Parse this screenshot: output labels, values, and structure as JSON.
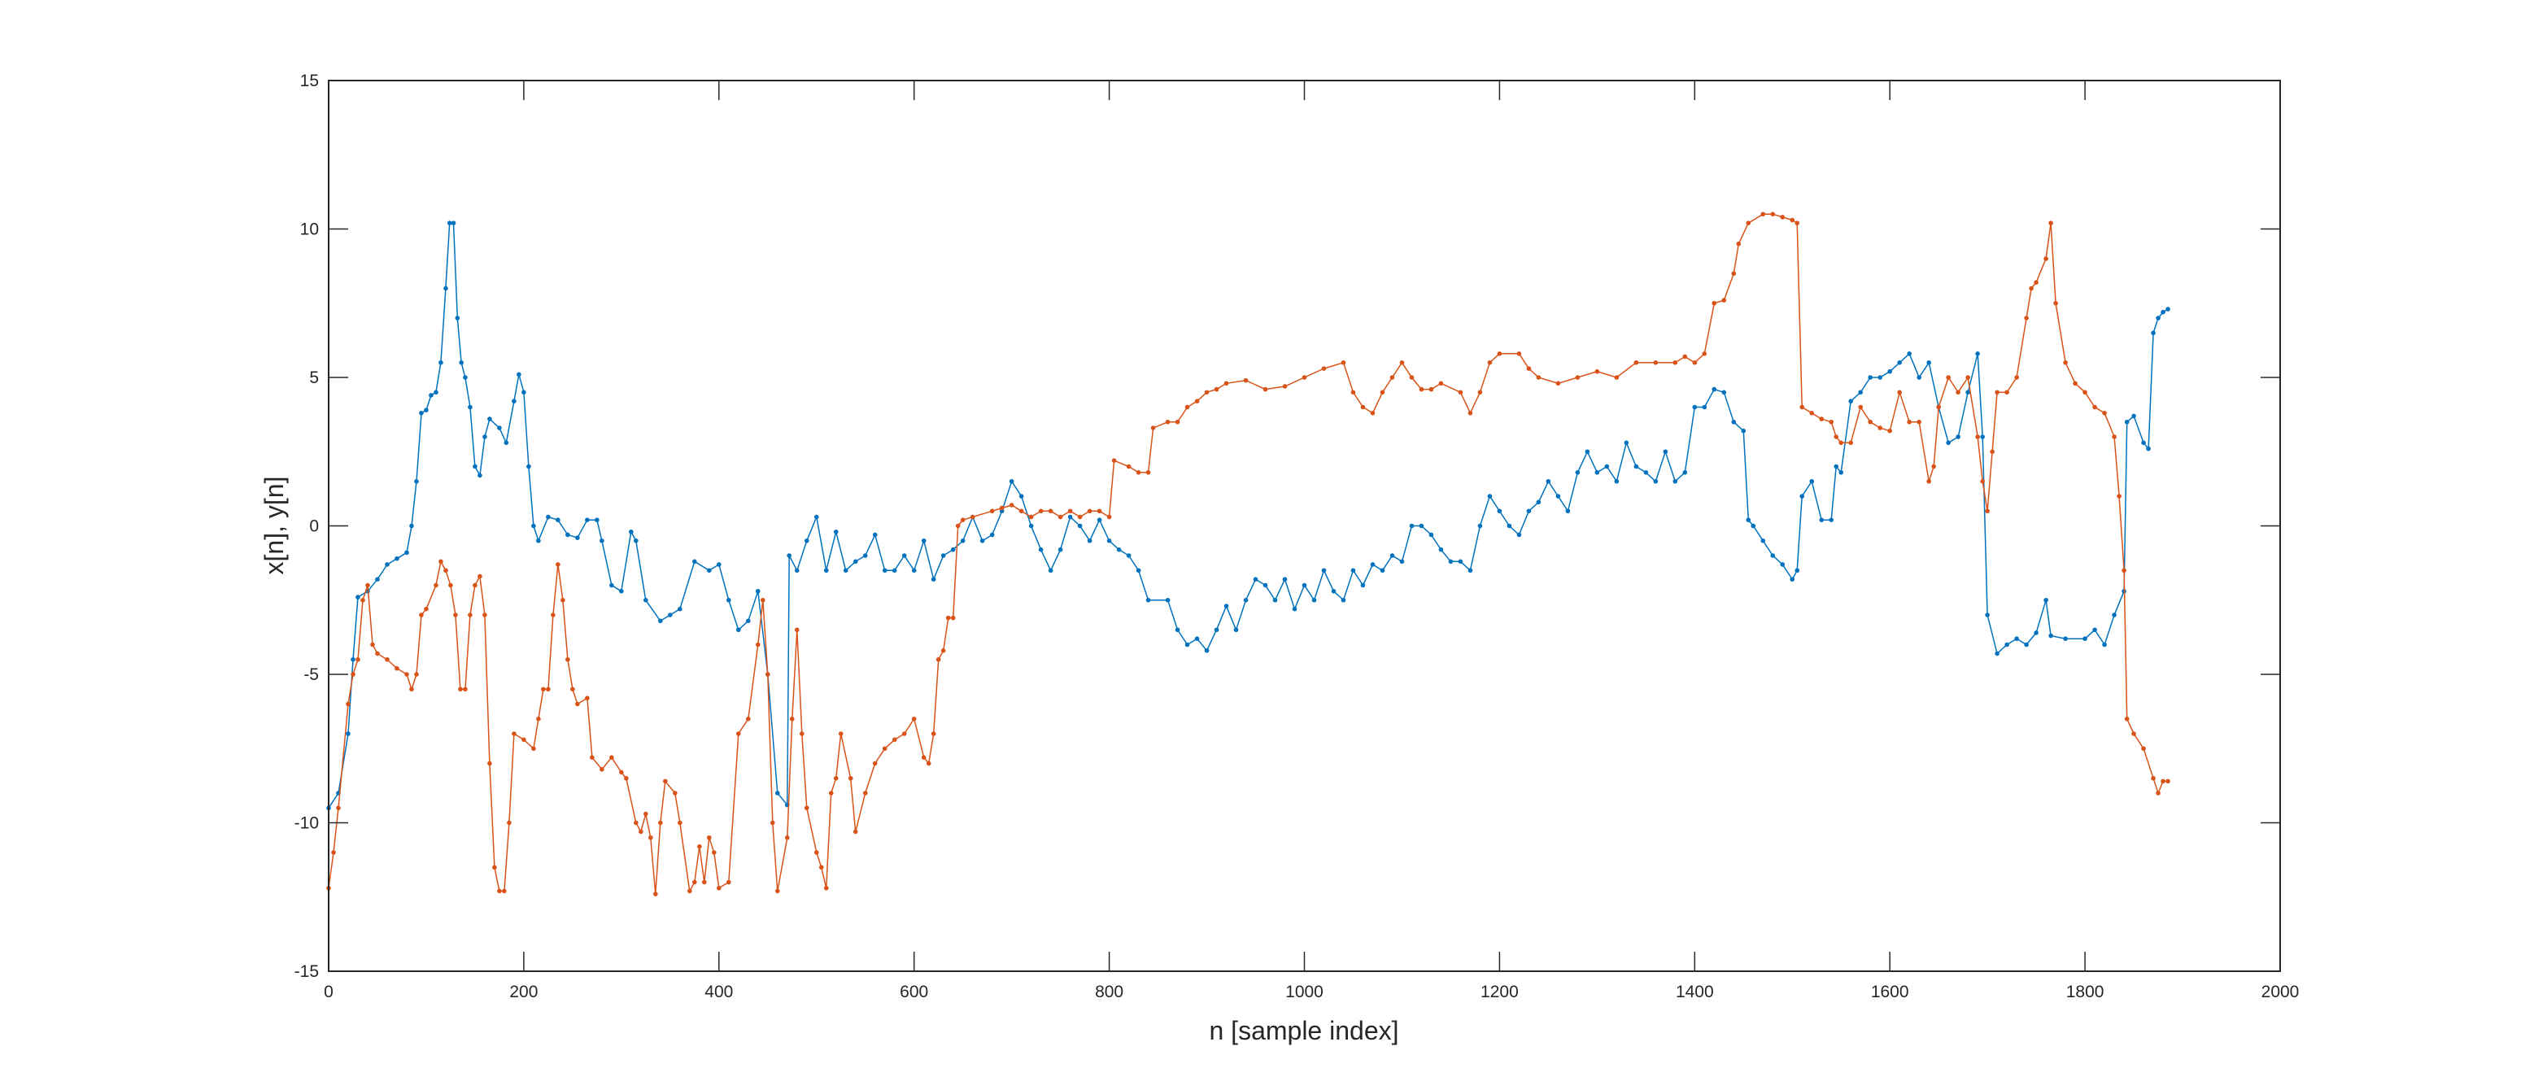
{
  "chart_data": {
    "type": "line",
    "title": "",
    "xlabel": "n [sample index]",
    "ylabel": "x[n], y[n]",
    "xlim": [
      0,
      2000
    ],
    "ylim": [
      -15,
      15
    ],
    "xticks": [
      0,
      200,
      400,
      600,
      800,
      1000,
      1200,
      1400,
      1600,
      1800,
      2000
    ],
    "yticks": [
      -15,
      -10,
      -5,
      0,
      5,
      10,
      15
    ],
    "grid": false,
    "legend": "none",
    "markers": true,
    "series": [
      {
        "color": "#0072BD",
        "x": [
          0,
          10,
          20,
          25,
          30,
          40,
          50,
          60,
          70,
          80,
          85,
          90,
          95,
          100,
          105,
          110,
          115,
          120,
          124,
          128,
          132,
          136,
          140,
          145,
          150,
          155,
          160,
          165,
          175,
          182,
          190,
          195,
          200,
          205,
          210,
          215,
          225,
          235,
          245,
          255,
          265,
          275,
          280,
          290,
          300,
          310,
          315,
          325,
          340,
          350,
          360,
          375,
          390,
          400,
          410,
          420,
          430,
          440,
          450,
          460,
          470,
          472,
          480,
          490,
          500,
          510,
          520,
          530,
          540,
          550,
          560,
          570,
          580,
          590,
          600,
          610,
          620,
          630,
          640,
          650,
          660,
          670,
          680,
          690,
          700,
          710,
          720,
          730,
          740,
          750,
          760,
          770,
          780,
          790,
          800,
          810,
          820,
          830,
          840,
          860,
          870,
          880,
          890,
          900,
          910,
          920,
          930,
          940,
          950,
          960,
          970,
          980,
          990,
          1000,
          1010,
          1020,
          1030,
          1040,
          1050,
          1060,
          1070,
          1080,
          1090,
          1100,
          1110,
          1120,
          1130,
          1140,
          1150,
          1160,
          1170,
          1180,
          1190,
          1200,
          1210,
          1220,
          1230,
          1240,
          1250,
          1260,
          1270,
          1280,
          1290,
          1300,
          1310,
          1320,
          1330,
          1340,
          1350,
          1360,
          1370,
          1380,
          1390,
          1400,
          1410,
          1420,
          1430,
          1440,
          1450,
          1455,
          1460,
          1470,
          1480,
          1490,
          1500,
          1505,
          1510,
          1520,
          1530,
          1540,
          1545,
          1550,
          1560,
          1570,
          1580,
          1590,
          1600,
          1610,
          1620,
          1630,
          1640,
          1650,
          1660,
          1670,
          1680,
          1690,
          1695,
          1700,
          1710,
          1720,
          1730,
          1740,
          1750,
          1760,
          1765,
          1780,
          1800,
          1810,
          1820,
          1830,
          1840,
          1843,
          1850,
          1860,
          1865,
          1870,
          1875,
          1880,
          1885
        ],
        "y": [
          -9.5,
          -9,
          -7,
          -4.5,
          -2.4,
          -2.2,
          -1.8,
          -1.3,
          -1.1,
          -0.9,
          0,
          1.5,
          3.8,
          3.9,
          4.4,
          4.5,
          5.5,
          8,
          10.2,
          10.2,
          7,
          5.5,
          5,
          4,
          2,
          1.7,
          3,
          3.6,
          3.3,
          2.8,
          4.2,
          5.1,
          4.5,
          2,
          0,
          -0.5,
          0.3,
          0.2,
          -0.3,
          -0.4,
          0.2,
          0.2,
          -0.5,
          -2,
          -2.2,
          -0.2,
          -0.5,
          -2.5,
          -3.2,
          -3,
          -2.8,
          -1.2,
          -1.5,
          -1.3,
          -2.5,
          -3.5,
          -3.2,
          -2.2,
          -5,
          -9,
          -9.4,
          -1,
          -1.5,
          -0.5,
          0.3,
          -1.5,
          -0.2,
          -1.5,
          -1.2,
          -1,
          -0.3,
          -1.5,
          -1.5,
          -1,
          -1.5,
          -0.5,
          -1.8,
          -1,
          -0.8,
          -0.5,
          0.3,
          -0.5,
          -0.3,
          0.5,
          1.5,
          1,
          0,
          -0.8,
          -1.5,
          -0.8,
          0.3,
          0,
          -0.5,
          0.2,
          -0.5,
          -0.8,
          -1,
          -1.5,
          -2.5,
          -2.5,
          -3.5,
          -4,
          -3.8,
          -4.2,
          -3.5,
          -2.7,
          -3.5,
          -2.5,
          -1.8,
          -2,
          -2.5,
          -1.8,
          -2.8,
          -2,
          -2.5,
          -1.5,
          -2.2,
          -2.5,
          -1.5,
          -2,
          -1.3,
          -1.5,
          -1,
          -1.2,
          0,
          0,
          -0.3,
          -0.8,
          -1.2,
          -1.2,
          -1.5,
          0,
          1,
          0.5,
          0,
          -0.3,
          0.5,
          0.8,
          1.5,
          1,
          0.5,
          1.8,
          2.5,
          1.8,
          2,
          1.5,
          2.8,
          2,
          1.8,
          1.5,
          2.5,
          1.5,
          1.8,
          4,
          4,
          4.6,
          4.5,
          3.5,
          3.2,
          0.2,
          0,
          -0.5,
          -1,
          -1.3,
          -1.8,
          -1.5,
          1,
          1.5,
          0.2,
          0.2,
          2,
          1.8,
          4.2,
          4.5,
          5,
          5,
          5.2,
          5.5,
          5.8,
          5,
          5.5,
          4,
          2.8,
          3,
          4.5,
          5.8,
          3,
          -3,
          -4.3,
          -4,
          -3.8,
          -4,
          -3.6,
          -2.5,
          -3.7,
          -3.8,
          -3.8,
          -3.5,
          -4,
          -3,
          -2.2,
          3.5,
          3.7,
          2.8,
          2.6,
          6.5,
          7,
          7.2,
          7.3
        ]
      },
      {
        "color": "#D95319",
        "x": [
          0,
          5,
          10,
          20,
          25,
          30,
          35,
          40,
          45,
          50,
          60,
          70,
          80,
          85,
          90,
          95,
          100,
          110,
          115,
          120,
          125,
          130,
          135,
          140,
          145,
          150,
          155,
          160,
          165,
          170,
          175,
          180,
          185,
          190,
          200,
          210,
          215,
          220,
          225,
          230,
          235,
          240,
          245,
          250,
          255,
          265,
          270,
          280,
          290,
          300,
          305,
          315,
          320,
          325,
          330,
          335,
          340,
          345,
          355,
          360,
          370,
          375,
          380,
          385,
          390,
          395,
          400,
          410,
          420,
          430,
          440,
          445,
          450,
          455,
          460,
          470,
          475,
          480,
          485,
          490,
          500,
          505,
          510,
          515,
          520,
          525,
          535,
          540,
          550,
          560,
          570,
          580,
          590,
          600,
          610,
          615,
          620,
          625,
          630,
          635,
          640,
          645,
          650,
          660,
          680,
          690,
          700,
          710,
          720,
          730,
          740,
          750,
          760,
          770,
          780,
          790,
          800,
          805,
          820,
          830,
          840,
          845,
          860,
          870,
          880,
          890,
          900,
          910,
          920,
          940,
          960,
          980,
          1000,
          1020,
          1040,
          1050,
          1060,
          1070,
          1080,
          1090,
          1100,
          1110,
          1120,
          1130,
          1140,
          1160,
          1170,
          1180,
          1190,
          1200,
          1220,
          1230,
          1240,
          1260,
          1280,
          1300,
          1320,
          1340,
          1360,
          1380,
          1390,
          1400,
          1410,
          1420,
          1430,
          1440,
          1445,
          1455,
          1470,
          1480,
          1490,
          1500,
          1505,
          1510,
          1520,
          1530,
          1540,
          1545,
          1550,
          1560,
          1570,
          1580,
          1590,
          1600,
          1610,
          1620,
          1630,
          1640,
          1645,
          1650,
          1660,
          1670,
          1680,
          1690,
          1695,
          1700,
          1705,
          1710,
          1720,
          1730,
          1740,
          1745,
          1750,
          1760,
          1765,
          1770,
          1780,
          1790,
          1800,
          1810,
          1820,
          1830,
          1835,
          1840,
          1843,
          1850,
          1860,
          1870,
          1875,
          1880,
          1885
        ],
        "y": [
          -12.2,
          -11,
          -9.5,
          -6,
          -5,
          -4.5,
          -2.5,
          -2,
          -4,
          -4.3,
          -4.5,
          -4.8,
          -5,
          -5.5,
          -5,
          -3,
          -2.8,
          -2,
          -1.2,
          -1.5,
          -2,
          -3,
          -5.5,
          -5.5,
          -3,
          -2,
          -1.7,
          -3,
          -8,
          -11.5,
          -12.3,
          -12.3,
          -10,
          -7,
          -7.2,
          -7.5,
          -6.5,
          -5.5,
          -5.5,
          -3,
          -1.3,
          -2.5,
          -4.5,
          -5.5,
          -6,
          -5.8,
          -7.8,
          -8.2,
          -7.8,
          -8.3,
          -8.5,
          -10,
          -10.3,
          -9.7,
          -10.5,
          -12.4,
          -10,
          -8.6,
          -9,
          -10,
          -12.3,
          -12,
          -10.8,
          -12,
          -10.5,
          -11,
          -12.2,
          -12,
          -7,
          -6.5,
          -4,
          -2.5,
          -5,
          -10,
          -12.3,
          -10.5,
          -6.5,
          -3.5,
          -7,
          -9.5,
          -11,
          -11.5,
          -12.2,
          -9,
          -8.5,
          -7,
          -8.5,
          -10.3,
          -9,
          -8,
          -7.5,
          -7.2,
          -7,
          -6.5,
          -7.8,
          -8,
          -7,
          -4.5,
          -4.2,
          -3.1,
          -3.1,
          0,
          0.2,
          0.3,
          0.5,
          0.6,
          0.7,
          0.5,
          0.3,
          0.5,
          0.5,
          0.3,
          0.5,
          0.3,
          0.5,
          0.5,
          0.3,
          2.2,
          2,
          1.8,
          1.8,
          3.3,
          3.5,
          3.5,
          4,
          4.2,
          4.5,
          4.6,
          4.8,
          4.9,
          4.6,
          4.7,
          5,
          5.3,
          5.5,
          4.5,
          4,
          3.8,
          4.5,
          5,
          5.5,
          5,
          4.6,
          4.6,
          4.8,
          4.5,
          3.8,
          4.5,
          5.5,
          5.8,
          5.8,
          5.3,
          5,
          4.8,
          5,
          5.2,
          5,
          5.5,
          5.5,
          5.5,
          5.7,
          5.5,
          5.8,
          7.5,
          7.6,
          8.5,
          9.5,
          10.2,
          10.5,
          10.5,
          10.4,
          10.3,
          10.2,
          4,
          3.8,
          3.6,
          3.5,
          3,
          2.8,
          2.8,
          4,
          3.5,
          3.3,
          3.2,
          4.5,
          3.5,
          3.5,
          1.5,
          2,
          4,
          5,
          4.5,
          5,
          3,
          1.5,
          0.5,
          2.5,
          4.5,
          4.5,
          5,
          7,
          8,
          8.2,
          9,
          10.2,
          7.5,
          5.5,
          4.8,
          4.5,
          4,
          3.8,
          3,
          1,
          -1.5,
          -6.5,
          -7,
          -7.5,
          -8.5,
          -9,
          -8.6,
          -8.6
        ]
      }
    ]
  }
}
